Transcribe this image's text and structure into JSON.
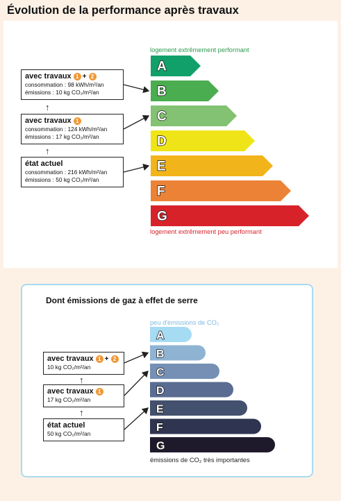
{
  "page_title": "Évolution de la performance après travaux",
  "energy": {
    "top_caption": "logement extrêmement performant",
    "bottom_caption": "logement extrêmement peu performant",
    "classes": [
      {
        "letter": "A",
        "color": "#12a06a"
      },
      {
        "letter": "B",
        "color": "#4aad4f"
      },
      {
        "letter": "C",
        "color": "#82c272"
      },
      {
        "letter": "D",
        "color": "#efe418"
      },
      {
        "letter": "E",
        "color": "#f2b41b"
      },
      {
        "letter": "F",
        "color": "#ec8236"
      },
      {
        "letter": "G",
        "color": "#d8222a"
      }
    ],
    "states": [
      {
        "title": "avec travaux",
        "steps": [
          "1",
          "2"
        ],
        "plus": "+",
        "line1": "consommation : 98 kWh/m²/an",
        "line2": "émissions : 10 kg CO₂/m²/an",
        "class": "B"
      },
      {
        "title": "avec travaux",
        "steps": [
          "1"
        ],
        "line1": "consommation : 124 kWh/m²/an",
        "line2": "émissions : 17 kg CO₂/m²/an",
        "class": "C"
      },
      {
        "title": "état actuel",
        "steps": [],
        "line1": "consommation : 216 kWh/m²/an",
        "line2": "émissions : 50 kg CO₂/m²/an",
        "class": "E"
      }
    ]
  },
  "ghg": {
    "title": "Dont émissions de gaz à effet de serre",
    "top_caption": "peu d'émissions de CO₂",
    "bottom_caption": "émissions de CO₂ très importantes",
    "classes": [
      {
        "letter": "A",
        "color": "#a6dbf4"
      },
      {
        "letter": "B",
        "color": "#8fb3d3"
      },
      {
        "letter": "C",
        "color": "#7590b4"
      },
      {
        "letter": "D",
        "color": "#5a6c91"
      },
      {
        "letter": "E",
        "color": "#43506e"
      },
      {
        "letter": "F",
        "color": "#2f3450"
      },
      {
        "letter": "G",
        "color": "#1e1a2c"
      }
    ],
    "states": [
      {
        "title": "avec travaux",
        "steps": [
          "1",
          "2"
        ],
        "plus": "+",
        "line1": "10 kg CO₂/m²/an",
        "class": "B"
      },
      {
        "title": "avec travaux",
        "steps": [
          "1"
        ],
        "line1": "17 kg CO₂/m²/an",
        "class": "C"
      },
      {
        "title": "état actuel",
        "steps": [],
        "line1": "50 kg CO₂/m²/an",
        "class": "E"
      }
    ]
  }
}
